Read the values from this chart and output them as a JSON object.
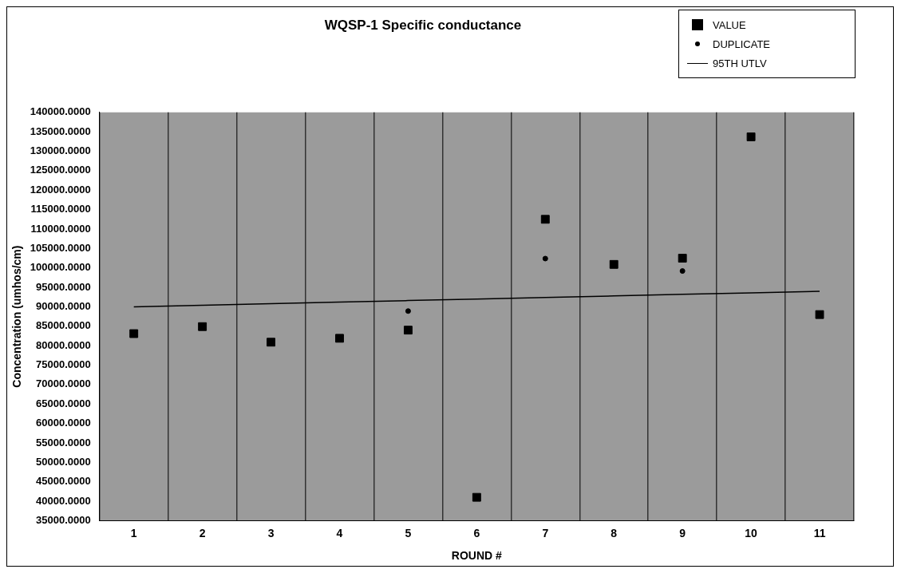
{
  "chart_data": {
    "type": "scatter",
    "title": "WQSP-1 Specific conductance",
    "xlabel": "ROUND #",
    "ylabel": "Concentration (umhos/cm)",
    "categories": [
      "1",
      "2",
      "3",
      "4",
      "5",
      "6",
      "7",
      "8",
      "9",
      "10",
      "11"
    ],
    "series": [
      {
        "name": "VALUE",
        "color": "#000000",
        "marker": "square",
        "values": [
          83100,
          84900,
          80900,
          81900,
          84000,
          41000,
          112500,
          100900,
          102500,
          133700,
          88000
        ]
      },
      {
        "name": "DUPLICATE",
        "color": "#000000",
        "marker": "circle",
        "values": [
          null,
          null,
          null,
          null,
          88900,
          null,
          102400,
          null,
          99200,
          null,
          null
        ]
      },
      {
        "name": "95TH UTLV",
        "type": "line",
        "color": "#000000",
        "marker": "none",
        "values": [
          90000,
          90400,
          90800,
          91200,
          91600,
          92000,
          92400,
          92800,
          93200,
          93600,
          94000
        ]
      }
    ],
    "ylim": [
      35000,
      140000
    ],
    "yticks": [
      {
        "value": 35000,
        "label": "35000.0000"
      },
      {
        "value": 40000,
        "label": "40000.0000"
      },
      {
        "value": 45000,
        "label": "45000.0000"
      },
      {
        "value": 50000,
        "label": "50000.0000"
      },
      {
        "value": 55000,
        "label": "55000.0000"
      },
      {
        "value": 60000,
        "label": "60000.0000"
      },
      {
        "value": 65000,
        "label": "65000.0000"
      },
      {
        "value": 70000,
        "label": "70000.0000"
      },
      {
        "value": 75000,
        "label": "75000.0000"
      },
      {
        "value": 80000,
        "label": "80000.0000"
      },
      {
        "value": 85000,
        "label": "85000.0000"
      },
      {
        "value": 90000,
        "label": "90000.0000"
      },
      {
        "value": 95000,
        "label": "95000.0000"
      },
      {
        "value": 100000,
        "label": "100000.0000"
      },
      {
        "value": 105000,
        "label": "105000.0000"
      },
      {
        "value": 110000,
        "label": "110000.0000"
      },
      {
        "value": 115000,
        "label": "115000.0000"
      },
      {
        "value": 120000,
        "label": "120000.0000"
      },
      {
        "value": 125000,
        "label": "125000.0000"
      },
      {
        "value": 130000,
        "label": "130000.0000"
      },
      {
        "value": 135000,
        "label": "135000.0000"
      },
      {
        "value": 140000,
        "label": "140000.0000"
      }
    ],
    "grid": "x",
    "legend": "top right"
  }
}
